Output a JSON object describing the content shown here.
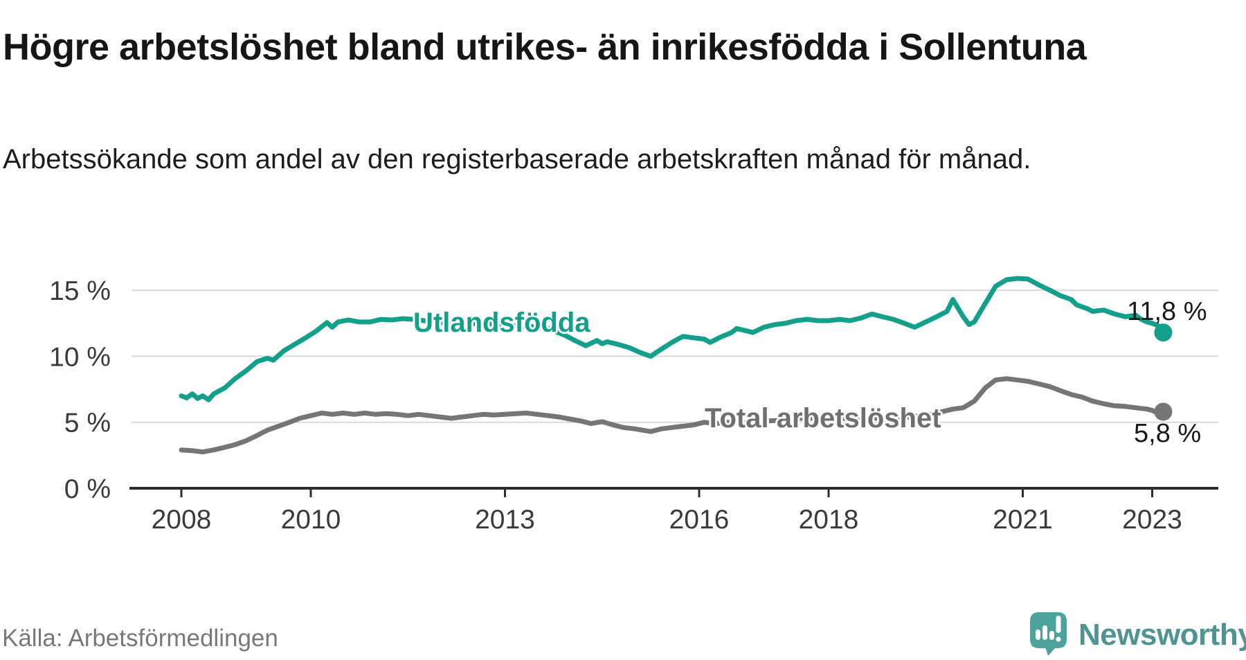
{
  "header": {
    "title": "Högre arbetslöshet bland utrikes- än inrikesfödda i Sollentuna",
    "subtitle": "Arbetssökande som andel av den registerbaserade arbetskraften månad för månad."
  },
  "footer": {
    "source": "Källa: Arbetsförmedlingen",
    "brand_name": "Newsworthy"
  },
  "colors": {
    "foreign_born_line": "#12a08b",
    "total_line": "#757575",
    "axis": "#2d2d2d",
    "gridline": "#dadada",
    "logo_teal": "#4da39b",
    "brand_text": "#4f9490"
  },
  "chart_data": {
    "type": "line",
    "title": "Högre arbetslöshet bland utrikes- än inrikesfödda i Sollentuna",
    "subtitle": "Arbetssökande som andel av den registerbaserade arbetskraften månad för månad.",
    "x_unit": "decimal_year",
    "xlim": [
      2007.2,
      2024.1
    ],
    "ylim": [
      0,
      16.5
    ],
    "grid": true,
    "legend_position": "inline-labels",
    "xticks": [
      2008,
      2010,
      2013,
      2016,
      2018,
      2021,
      2023
    ],
    "yticks": [
      {
        "value": 0,
        "label": "0 %"
      },
      {
        "value": 5,
        "label": "5 %"
      },
      {
        "value": 10,
        "label": "10 %"
      },
      {
        "value": 15,
        "label": "15 %"
      }
    ],
    "series": [
      {
        "name": "Utlandsfödda",
        "color": "#12a08b",
        "end_value_label": "11,8 %",
        "end_value": 11.8,
        "points": [
          [
            2008.0,
            7.0
          ],
          [
            2008.08,
            6.85
          ],
          [
            2008.17,
            7.15
          ],
          [
            2008.25,
            6.8
          ],
          [
            2008.33,
            7.0
          ],
          [
            2008.42,
            6.7
          ],
          [
            2008.5,
            7.15
          ],
          [
            2008.67,
            7.6
          ],
          [
            2008.83,
            8.3
          ],
          [
            2009.0,
            8.9
          ],
          [
            2009.17,
            9.6
          ],
          [
            2009.33,
            9.85
          ],
          [
            2009.42,
            9.7
          ],
          [
            2009.58,
            10.4
          ],
          [
            2009.75,
            10.9
          ],
          [
            2009.92,
            11.4
          ],
          [
            2010.08,
            11.9
          ],
          [
            2010.25,
            12.55
          ],
          [
            2010.33,
            12.2
          ],
          [
            2010.42,
            12.6
          ],
          [
            2010.58,
            12.75
          ],
          [
            2010.75,
            12.6
          ],
          [
            2010.92,
            12.6
          ],
          [
            2011.08,
            12.8
          ],
          [
            2011.25,
            12.75
          ],
          [
            2011.42,
            12.85
          ],
          [
            2011.58,
            12.8
          ],
          [
            2011.75,
            12.7
          ],
          [
            2011.92,
            12.55
          ],
          [
            2012.17,
            12.5
          ],
          [
            2012.42,
            12.45
          ],
          [
            2012.67,
            12.5
          ],
          [
            2012.92,
            12.4
          ],
          [
            2013.17,
            12.3
          ],
          [
            2013.42,
            12.25
          ],
          [
            2013.67,
            12.1
          ],
          [
            2013.92,
            11.6
          ],
          [
            2014.08,
            11.2
          ],
          [
            2014.25,
            10.8
          ],
          [
            2014.42,
            11.2
          ],
          [
            2014.5,
            10.95
          ],
          [
            2014.58,
            11.1
          ],
          [
            2014.75,
            10.9
          ],
          [
            2014.92,
            10.65
          ],
          [
            2015.08,
            10.3
          ],
          [
            2015.25,
            10.0
          ],
          [
            2015.42,
            10.55
          ],
          [
            2015.58,
            11.05
          ],
          [
            2015.67,
            11.3
          ],
          [
            2015.75,
            11.5
          ],
          [
            2015.92,
            11.4
          ],
          [
            2016.08,
            11.3
          ],
          [
            2016.17,
            11.05
          ],
          [
            2016.33,
            11.45
          ],
          [
            2016.5,
            11.8
          ],
          [
            2016.58,
            12.1
          ],
          [
            2016.75,
            11.9
          ],
          [
            2016.83,
            11.8
          ],
          [
            2017.0,
            12.2
          ],
          [
            2017.17,
            12.4
          ],
          [
            2017.33,
            12.5
          ],
          [
            2017.5,
            12.7
          ],
          [
            2017.67,
            12.8
          ],
          [
            2017.83,
            12.7
          ],
          [
            2018.0,
            12.7
          ],
          [
            2018.17,
            12.8
          ],
          [
            2018.33,
            12.7
          ],
          [
            2018.5,
            12.9
          ],
          [
            2018.67,
            13.2
          ],
          [
            2018.83,
            13.0
          ],
          [
            2019.0,
            12.8
          ],
          [
            2019.17,
            12.5
          ],
          [
            2019.33,
            12.2
          ],
          [
            2019.5,
            12.6
          ],
          [
            2019.67,
            13.0
          ],
          [
            2019.83,
            13.4
          ],
          [
            2019.92,
            14.3
          ],
          [
            2020.08,
            13.0
          ],
          [
            2020.17,
            12.4
          ],
          [
            2020.25,
            12.6
          ],
          [
            2020.42,
            14.0
          ],
          [
            2020.58,
            15.3
          ],
          [
            2020.75,
            15.8
          ],
          [
            2020.92,
            15.9
          ],
          [
            2021.08,
            15.85
          ],
          [
            2021.25,
            15.4
          ],
          [
            2021.42,
            15.0
          ],
          [
            2021.58,
            14.6
          ],
          [
            2021.75,
            14.3
          ],
          [
            2021.83,
            13.9
          ],
          [
            2022.0,
            13.6
          ],
          [
            2022.08,
            13.4
          ],
          [
            2022.25,
            13.5
          ],
          [
            2022.42,
            13.2
          ],
          [
            2022.58,
            13.0
          ],
          [
            2022.75,
            13.1
          ],
          [
            2022.83,
            12.8
          ],
          [
            2022.92,
            12.6
          ],
          [
            2023.0,
            12.5
          ],
          [
            2023.08,
            12.35
          ],
          [
            2023.17,
            11.8
          ]
        ]
      },
      {
        "name": "Total arbetslöshet",
        "color": "#757575",
        "end_value_label": "5,8 %",
        "end_value": 5.8,
        "points": [
          [
            2008.0,
            2.9
          ],
          [
            2008.17,
            2.85
          ],
          [
            2008.33,
            2.75
          ],
          [
            2008.5,
            2.9
          ],
          [
            2008.67,
            3.1
          ],
          [
            2008.83,
            3.3
          ],
          [
            2009.0,
            3.6
          ],
          [
            2009.17,
            4.0
          ],
          [
            2009.33,
            4.4
          ],
          [
            2009.5,
            4.7
          ],
          [
            2009.67,
            5.0
          ],
          [
            2009.83,
            5.3
          ],
          [
            2010.0,
            5.5
          ],
          [
            2010.17,
            5.7
          ],
          [
            2010.33,
            5.6
          ],
          [
            2010.5,
            5.7
          ],
          [
            2010.67,
            5.6
          ],
          [
            2010.83,
            5.7
          ],
          [
            2011.0,
            5.6
          ],
          [
            2011.17,
            5.65
          ],
          [
            2011.33,
            5.6
          ],
          [
            2011.5,
            5.5
          ],
          [
            2011.67,
            5.6
          ],
          [
            2011.83,
            5.5
          ],
          [
            2012.0,
            5.4
          ],
          [
            2012.17,
            5.3
          ],
          [
            2012.33,
            5.4
          ],
          [
            2012.5,
            5.5
          ],
          [
            2012.67,
            5.6
          ],
          [
            2012.83,
            5.55
          ],
          [
            2013.0,
            5.6
          ],
          [
            2013.17,
            5.65
          ],
          [
            2013.33,
            5.7
          ],
          [
            2013.5,
            5.6
          ],
          [
            2013.67,
            5.5
          ],
          [
            2013.83,
            5.4
          ],
          [
            2014.0,
            5.25
          ],
          [
            2014.17,
            5.1
          ],
          [
            2014.33,
            4.9
          ],
          [
            2014.5,
            5.05
          ],
          [
            2014.67,
            4.8
          ],
          [
            2014.83,
            4.6
          ],
          [
            2015.0,
            4.5
          ],
          [
            2015.25,
            4.3
          ],
          [
            2015.42,
            4.5
          ],
          [
            2015.58,
            4.6
          ],
          [
            2015.75,
            4.7
          ],
          [
            2015.92,
            4.8
          ],
          [
            2016.08,
            5.0
          ],
          [
            2016.25,
            4.9
          ],
          [
            2016.42,
            5.0
          ],
          [
            2016.58,
            5.0
          ],
          [
            2016.75,
            4.95
          ],
          [
            2016.92,
            5.0
          ],
          [
            2017.08,
            5.1
          ],
          [
            2017.25,
            5.15
          ],
          [
            2017.42,
            5.2
          ],
          [
            2017.58,
            5.3
          ],
          [
            2017.75,
            5.3
          ],
          [
            2017.92,
            5.2
          ],
          [
            2018.08,
            5.2
          ],
          [
            2018.25,
            5.3
          ],
          [
            2018.42,
            5.3
          ],
          [
            2018.58,
            5.35
          ],
          [
            2018.75,
            5.3
          ],
          [
            2018.92,
            5.2
          ],
          [
            2019.08,
            5.3
          ],
          [
            2019.25,
            5.4
          ],
          [
            2019.42,
            5.5
          ],
          [
            2019.58,
            5.6
          ],
          [
            2019.75,
            5.8
          ],
          [
            2019.92,
            6.0
          ],
          [
            2020.08,
            6.1
          ],
          [
            2020.25,
            6.6
          ],
          [
            2020.42,
            7.6
          ],
          [
            2020.58,
            8.2
          ],
          [
            2020.75,
            8.3
          ],
          [
            2020.92,
            8.2
          ],
          [
            2021.08,
            8.1
          ],
          [
            2021.25,
            7.9
          ],
          [
            2021.42,
            7.7
          ],
          [
            2021.58,
            7.4
          ],
          [
            2021.75,
            7.1
          ],
          [
            2021.92,
            6.9
          ],
          [
            2022.08,
            6.6
          ],
          [
            2022.25,
            6.4
          ],
          [
            2022.42,
            6.25
          ],
          [
            2022.58,
            6.2
          ],
          [
            2022.75,
            6.1
          ],
          [
            2022.92,
            6.0
          ],
          [
            2023.0,
            5.9
          ],
          [
            2023.08,
            5.7
          ],
          [
            2023.17,
            5.8
          ]
        ]
      }
    ]
  }
}
